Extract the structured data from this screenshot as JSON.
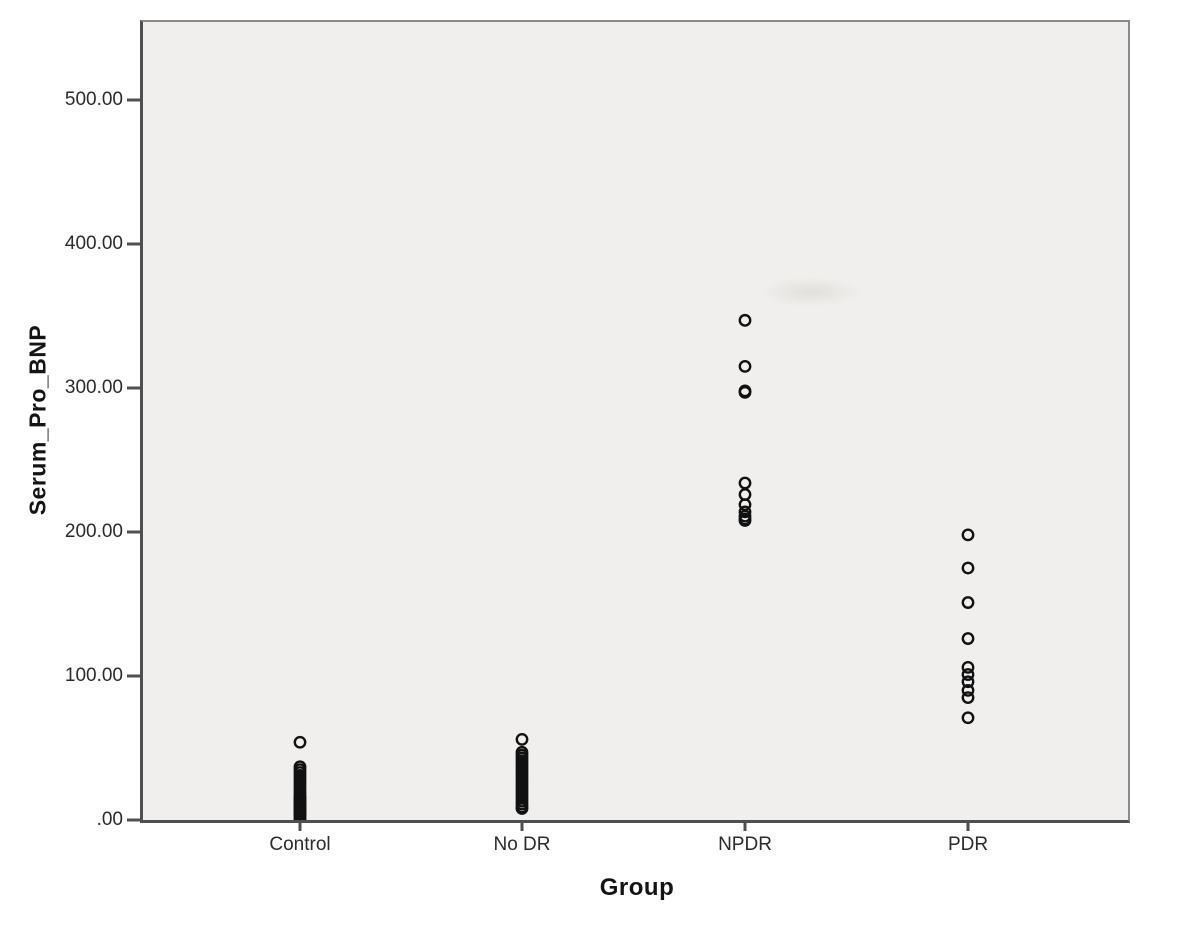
{
  "chart_data": {
    "type": "scatter",
    "title": "",
    "xlabel": "Group",
    "ylabel": "Serum_Pro_BNP",
    "categories": [
      "Control",
      "No DR",
      "NPDR",
      "PDR"
    ],
    "yticks": [
      {
        "label": ".00",
        "value": 0
      },
      {
        "label": "100.00",
        "value": 100
      },
      {
        "label": "200.00",
        "value": 200
      },
      {
        "label": "300.00",
        "value": 300
      },
      {
        "label": "400.00",
        "value": 400
      },
      {
        "label": "500.00",
        "value": 500
      }
    ],
    "ylim": [
      0,
      556
    ],
    "grid": "off",
    "legend": "none",
    "marker": {
      "shape": "open-circle",
      "stroke_color": "#111111",
      "fill": "none"
    },
    "series": [
      {
        "name": "Control",
        "values": [
          54,
          37,
          35,
          33,
          31,
          29,
          27,
          25,
          23,
          21,
          19,
          17,
          16,
          15,
          14,
          13,
          12,
          11,
          10,
          9,
          8,
          7,
          6,
          5,
          4,
          3,
          2,
          1,
          0
        ]
      },
      {
        "name": "No DR",
        "values": [
          56,
          47,
          45,
          43,
          41,
          39,
          37,
          35,
          33,
          31,
          29,
          27,
          25,
          23,
          21,
          19,
          17,
          15,
          13,
          11,
          9,
          8
        ]
      },
      {
        "name": "NPDR",
        "values": [
          347,
          315,
          298,
          297,
          234,
          226,
          219,
          214,
          211,
          209,
          208
        ]
      },
      {
        "name": "PDR",
        "values": [
          198,
          175,
          151,
          126,
          106,
          101,
          96,
          90,
          85,
          71
        ]
      }
    ]
  },
  "colors": {
    "page_bg": "#ffffff",
    "plot_bg": "#f0efed",
    "frame": "#8a8a8a",
    "axis": "#4f4f4f",
    "tick_text": "#2b2b2b",
    "title_text": "#141414",
    "marker": "#111111"
  }
}
